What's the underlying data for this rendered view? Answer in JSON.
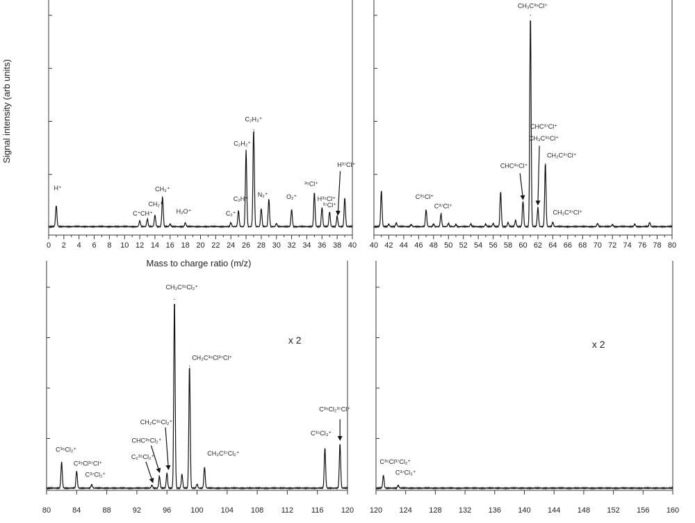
{
  "figure": {
    "ylabel": "Signal intensity (arb units)",
    "xlabel": "Mass to charge ratio (m/z)"
  },
  "chart_data": [
    {
      "type": "line",
      "id": "panel-0-40",
      "xlim": [
        0,
        40
      ],
      "ylim": [
        0,
        1
      ],
      "xticks": [
        0,
        2,
        4,
        6,
        8,
        10,
        12,
        14,
        16,
        18,
        20,
        22,
        24,
        26,
        28,
        30,
        32,
        34,
        36,
        38,
        40
      ],
      "scale_factor": "",
      "peaks": [
        {
          "x": 1,
          "y": 0.1
        },
        {
          "x": 12,
          "y": 0.028
        },
        {
          "x": 13,
          "y": 0.035
        },
        {
          "x": 14,
          "y": 0.055
        },
        {
          "x": 15,
          "y": 0.14
        },
        {
          "x": 16,
          "y": 0.012
        },
        {
          "x": 18,
          "y": 0.018
        },
        {
          "x": 24,
          "y": 0.018
        },
        {
          "x": 25,
          "y": 0.075
        },
        {
          "x": 26,
          "y": 0.36
        },
        {
          "x": 27,
          "y": 0.46
        },
        {
          "x": 28,
          "y": 0.085
        },
        {
          "x": 29,
          "y": 0.13
        },
        {
          "x": 30,
          "y": 0.015
        },
        {
          "x": 32,
          "y": 0.08
        },
        {
          "x": 35,
          "y": 0.16
        },
        {
          "x": 36,
          "y": 0.09
        },
        {
          "x": 37,
          "y": 0.07
        },
        {
          "x": 38,
          "y": 0.05
        },
        {
          "x": 39,
          "y": 0.135
        }
      ],
      "labels": [
        {
          "text": "H⁺",
          "x": 1.2,
          "y": 0.175
        },
        {
          "text": "C⁺",
          "x": 11.6,
          "y": 0.055
        },
        {
          "text": "CH⁺",
          "x": 12.9,
          "y": 0.055
        },
        {
          "text": "CH₂⁺",
          "x": 14.1,
          "y": 0.1
        },
        {
          "text": "CH₃⁺",
          "x": 15.0,
          "y": 0.17
        },
        {
          "text": "H₂O⁺",
          "x": 17.8,
          "y": 0.065
        },
        {
          "text": "C₂⁺",
          "x": 24.0,
          "y": 0.055
        },
        {
          "text": "C₂H⁺",
          "x": 25.3,
          "y": 0.125
        },
        {
          "text": "C₂H₂⁺",
          "x": 25.5,
          "y": 0.385
        },
        {
          "text": "C₂H₃⁺",
          "x": 27.0,
          "y": 0.5
        },
        {
          "text": "N₂⁺",
          "x": 28.2,
          "y": 0.145
        },
        {
          "text": "O₂⁺",
          "x": 32.0,
          "y": 0.135
        },
        {
          "text": "³⁵Cl⁺",
          "x": 34.6,
          "y": 0.195
        },
        {
          "text": "H³⁵Cl⁺",
          "x": 36.6,
          "y": 0.125
        },
        {
          "text": "³⁷Cl⁺",
          "x": 37.0,
          "y": 0.095
        },
        {
          "text": "H³⁷Cl⁺",
          "x": 39.2,
          "y": 0.285
        }
      ],
      "arrows": [
        {
          "from": [
            38.4,
            0.265
          ],
          "to": [
            38.1,
            0.062
          ]
        }
      ]
    },
    {
      "type": "line",
      "id": "panel-40-80",
      "xlim": [
        40,
        80
      ],
      "ylim": [
        0,
        1
      ],
      "xticks": [
        40,
        42,
        44,
        46,
        48,
        50,
        52,
        54,
        56,
        58,
        60,
        62,
        64,
        66,
        68,
        70,
        72,
        74,
        76,
        78,
        80
      ],
      "scale_factor": "",
      "peaks": [
        {
          "x": 41,
          "y": 0.17
        },
        {
          "x": 42,
          "y": 0.012
        },
        {
          "x": 43,
          "y": 0.018
        },
        {
          "x": 45,
          "y": 0.01
        },
        {
          "x": 47,
          "y": 0.08
        },
        {
          "x": 48,
          "y": 0.012
        },
        {
          "x": 49,
          "y": 0.06
        },
        {
          "x": 50,
          "y": 0.015
        },
        {
          "x": 51,
          "y": 0.01
        },
        {
          "x": 53,
          "y": 0.012
        },
        {
          "x": 55,
          "y": 0.012
        },
        {
          "x": 56,
          "y": 0.015
        },
        {
          "x": 57,
          "y": 0.165
        },
        {
          "x": 58,
          "y": 0.02
        },
        {
          "x": 59,
          "y": 0.03
        },
        {
          "x": 60,
          "y": 0.12
        },
        {
          "x": 61,
          "y": 1.0
        },
        {
          "x": 62,
          "y": 0.09
        },
        {
          "x": 63,
          "y": 0.3
        },
        {
          "x": 64,
          "y": 0.02
        },
        {
          "x": 70,
          "y": 0.015
        },
        {
          "x": 72,
          "y": 0.01
        },
        {
          "x": 75,
          "y": 0.012
        },
        {
          "x": 77,
          "y": 0.02
        }
      ],
      "labels": [
        {
          "text": "CH₃C³⁵Cl⁺",
          "x": 61.3,
          "y": 1.035
        },
        {
          "text": "CHC³⁷Cl⁺",
          "x": 62.8,
          "y": 0.465
        },
        {
          "text": "CH₃C³⁵Cl⁺",
          "x": 62.8,
          "y": 0.41
        },
        {
          "text": "CH₂C³⁷Cl⁺",
          "x": 65.2,
          "y": 0.33
        },
        {
          "text": "CHC³⁵Cl⁺",
          "x": 58.8,
          "y": 0.28
        },
        {
          "text": "C³⁵Cl⁺",
          "x": 46.8,
          "y": 0.135
        },
        {
          "text": "C³⁷Cl⁺",
          "x": 49.3,
          "y": 0.09
        },
        {
          "text": "CH₃C³⁷Cl⁺",
          "x": 66.0,
          "y": 0.06
        }
      ],
      "arrows": [
        {
          "from": [
            59.6,
            0.255
          ],
          "to": [
            60.0,
            0.135
          ]
        },
        {
          "from": [
            62.2,
            0.385
          ],
          "to": [
            62.0,
            0.11
          ]
        }
      ]
    },
    {
      "type": "line",
      "id": "panel-80-120",
      "xlim": [
        80,
        120
      ],
      "ylim": [
        0,
        1
      ],
      "xticks": [
        80,
        84,
        88,
        92,
        96,
        100,
        104,
        108,
        112,
        116,
        120
      ],
      "scale_factor": "x 2",
      "factor_pos": [
        113,
        0.72
      ],
      "peaks": [
        {
          "x": 82,
          "y": 0.13
        },
        {
          "x": 84,
          "y": 0.085
        },
        {
          "x": 86,
          "y": 0.018
        },
        {
          "x": 94,
          "y": 0.015
        },
        {
          "x": 95,
          "y": 0.06
        },
        {
          "x": 96,
          "y": 0.075
        },
        {
          "x": 97,
          "y": 0.94
        },
        {
          "x": 98,
          "y": 0.07
        },
        {
          "x": 99,
          "y": 0.61
        },
        {
          "x": 100,
          "y": 0.02
        },
        {
          "x": 101,
          "y": 0.105
        },
        {
          "x": 117,
          "y": 0.2
        },
        {
          "x": 119,
          "y": 0.22
        }
      ],
      "labels": [
        {
          "text": "C³⁵Cl₂⁺",
          "x": 82.6,
          "y": 0.185
        },
        {
          "text": "C³⁵Cl³⁷Cl⁺",
          "x": 85.5,
          "y": 0.115
        },
        {
          "text": "C³⁷Cl₂⁺",
          "x": 86.5,
          "y": 0.06
        },
        {
          "text": "CH₂C³⁵Cl₂⁺",
          "x": 94.6,
          "y": 0.32
        },
        {
          "text": "CHC³⁵Cl₂⁺",
          "x": 93.3,
          "y": 0.23
        },
        {
          "text": "C₂³⁵Cl₂⁺",
          "x": 92.8,
          "y": 0.148
        },
        {
          "text": "CH₃C³⁵Cl₂⁺",
          "x": 98.0,
          "y": 0.99
        },
        {
          "text": "CH₃C³⁵Cl³⁷Cl⁺",
          "x": 102.0,
          "y": 0.64
        },
        {
          "text": "CH₃C³⁷Cl₂⁺",
          "x": 103.5,
          "y": 0.165
        },
        {
          "text": "C³⁵Cl₃⁺",
          "x": 116.5,
          "y": 0.265
        },
        {
          "text": "C³⁵Cl₂³⁷Cl⁺",
          "x": 118.3,
          "y": 0.385
        }
      ],
      "arrows": [
        {
          "from": [
            95.8,
            0.305
          ],
          "to": [
            96.2,
            0.1
          ]
        },
        {
          "from": [
            93.9,
            0.215
          ],
          "to": [
            95.0,
            0.085
          ]
        },
        {
          "from": [
            93.2,
            0.135
          ],
          "to": [
            94.1,
            0.035
          ]
        },
        {
          "from": [
            119.0,
            0.345
          ],
          "to": [
            119.0,
            0.245
          ]
        }
      ]
    },
    {
      "type": "line",
      "id": "panel-120-160",
      "xlim": [
        120,
        160
      ],
      "ylim": [
        0,
        1
      ],
      "xticks": [
        120,
        124,
        128,
        132,
        136,
        140,
        144,
        148,
        152,
        156,
        160
      ],
      "scale_factor": "x 2",
      "factor_pos": [
        150,
        0.7
      ],
      "peaks": [
        {
          "x": 121,
          "y": 0.065
        },
        {
          "x": 123,
          "y": 0.015
        }
      ],
      "labels": [
        {
          "text": "C³⁵Cl³⁷Cl₂⁺",
          "x": 122.6,
          "y": 0.125
        },
        {
          "text": "C³⁷Cl₃⁺",
          "x": 124.0,
          "y": 0.07
        }
      ],
      "arrows": []
    }
  ]
}
